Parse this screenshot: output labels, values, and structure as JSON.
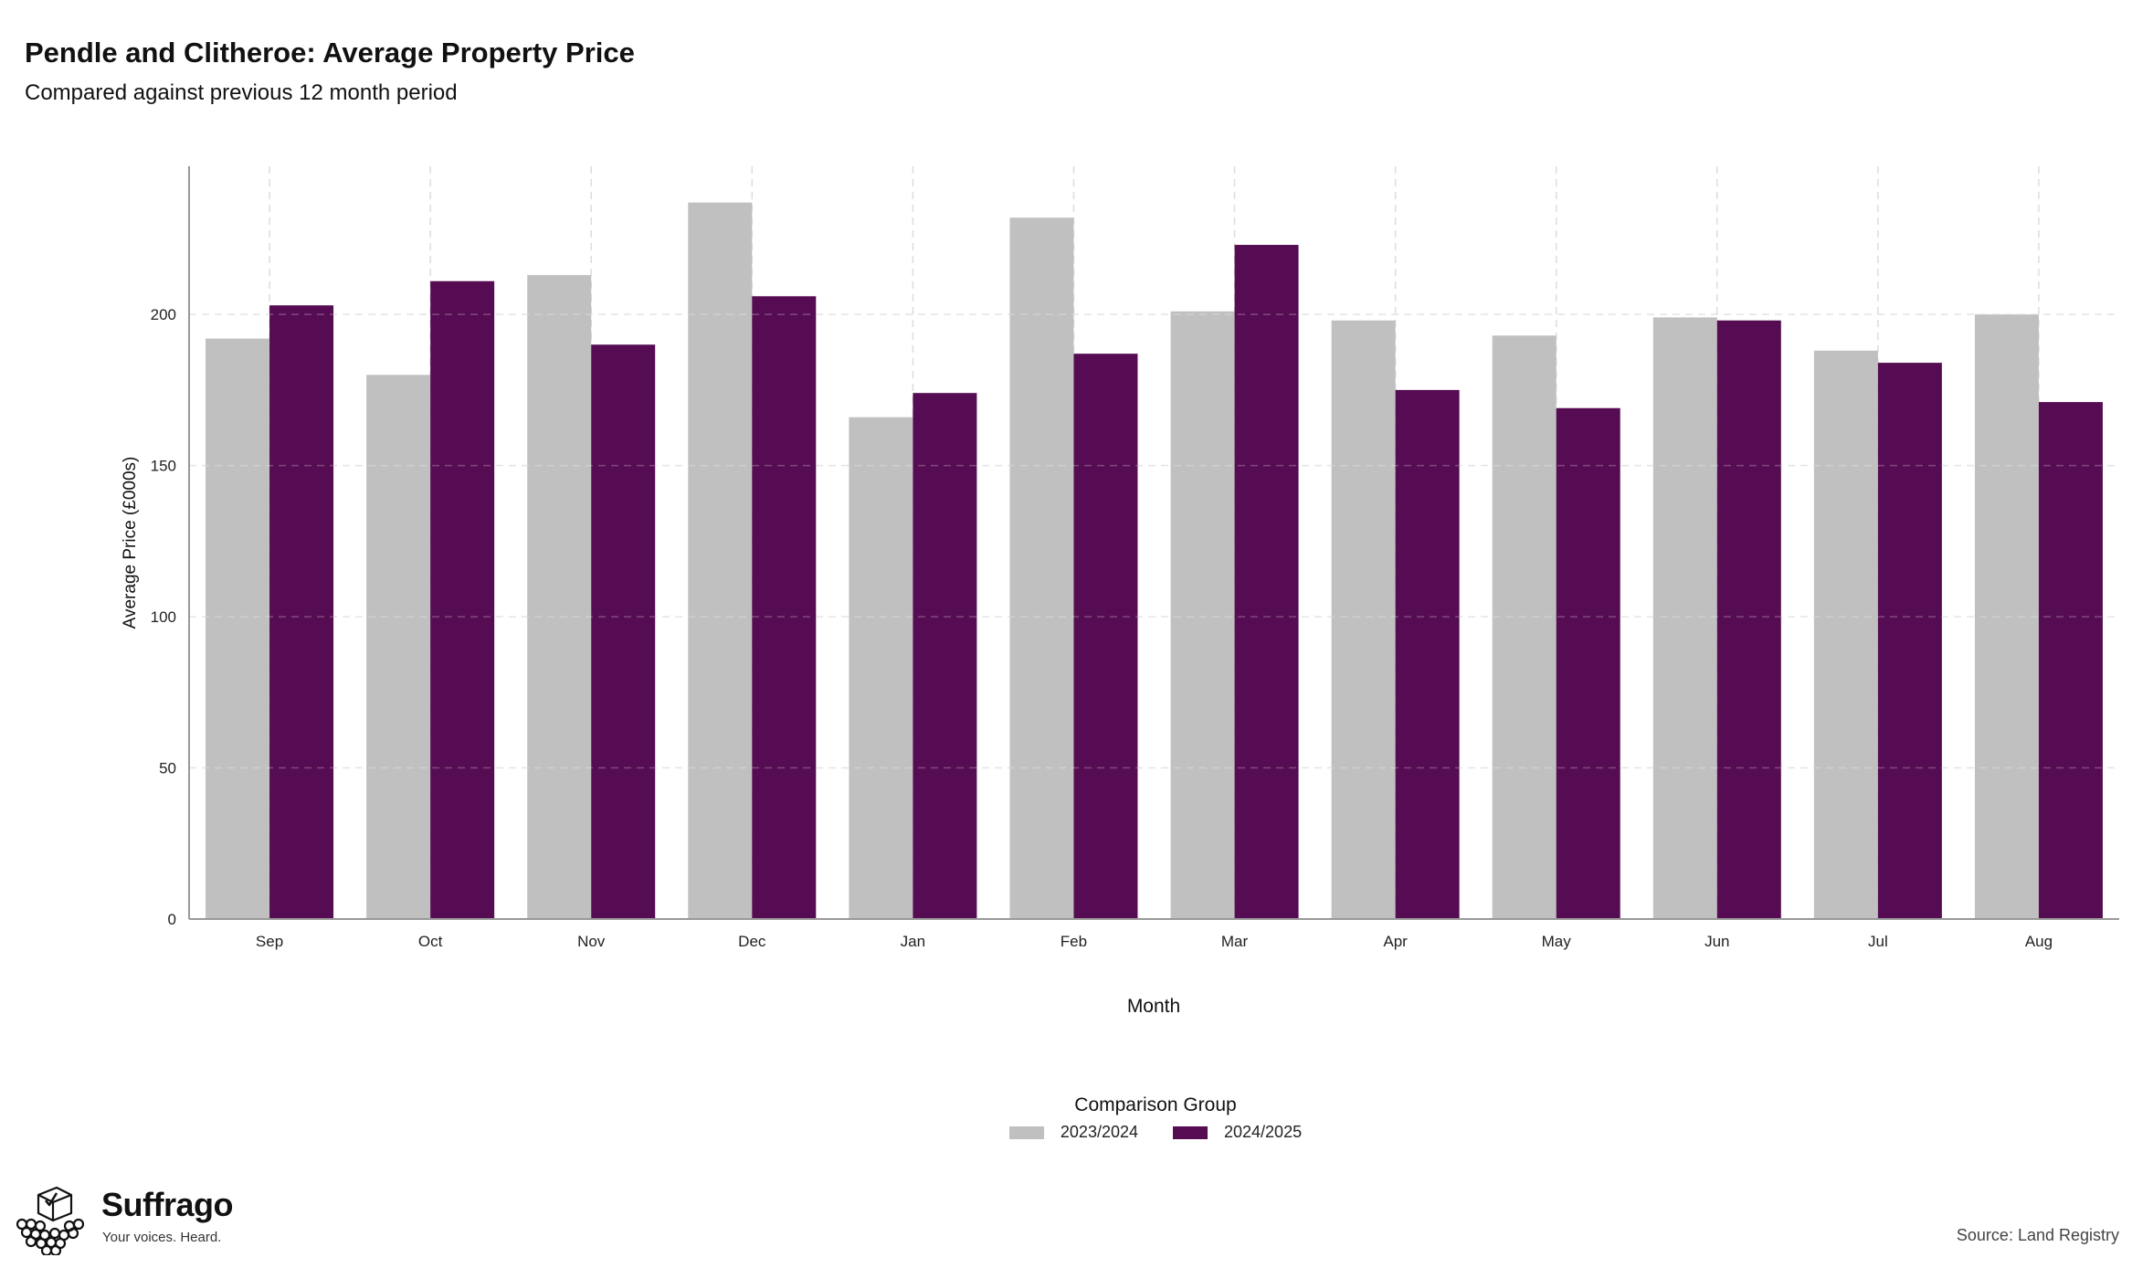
{
  "header": {
    "title": "Pendle and Clitheroe: Average Property Price",
    "subtitle": "Compared against previous 12 month period"
  },
  "legend": {
    "title": "Comparison Group",
    "items": [
      {
        "label": "2023/2024",
        "color": "#c0c0c0"
      },
      {
        "label": "2024/2025",
        "color": "#560c52"
      }
    ]
  },
  "branding": {
    "name": "Suffrago",
    "tagline": "Your voices. Heard.",
    "icon": "ballot-box-icon"
  },
  "footer": {
    "source": "Source: Land Registry"
  },
  "chart_data": {
    "type": "bar",
    "title": "Pendle and Clitheroe: Average Property Price",
    "subtitle": "Compared against previous 12 month period",
    "xlabel": "Month",
    "ylabel": "Average Price (£000s)",
    "categories": [
      "Sep",
      "Oct",
      "Nov",
      "Dec",
      "Jan",
      "Feb",
      "Mar",
      "Apr",
      "May",
      "Jun",
      "Jul",
      "Aug"
    ],
    "series": [
      {
        "name": "2023/2024",
        "color": "#c0c0c0",
        "values": [
          192,
          180,
          213,
          237,
          166,
          232,
          201,
          198,
          193,
          199,
          188,
          200
        ]
      },
      {
        "name": "2024/2025",
        "color": "#560c52",
        "values": [
          203,
          211,
          190,
          206,
          174,
          187,
          223,
          175,
          169,
          198,
          184,
          171
        ]
      }
    ],
    "ylim": [
      0,
      249
    ],
    "yticks": [
      0,
      50,
      100,
      150,
      200
    ],
    "grid": true,
    "legend_position": "bottom"
  }
}
